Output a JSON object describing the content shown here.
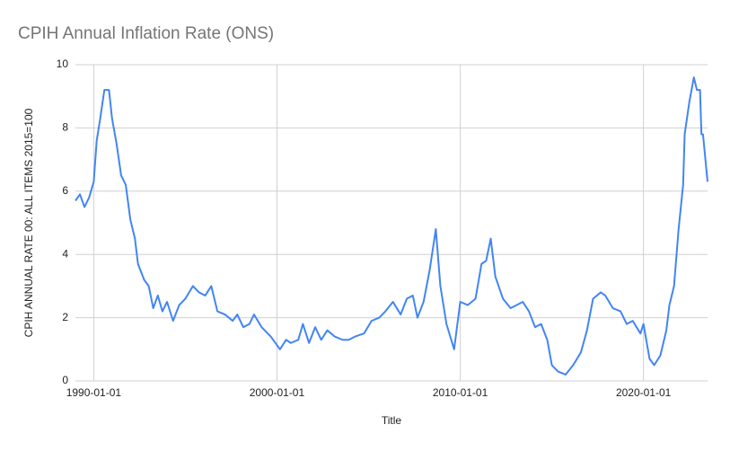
{
  "chart_data": {
    "type": "line",
    "title": "CPIH Annual Inflation Rate (ONS)",
    "xlabel": "Title",
    "ylabel": "CPIH ANNUAL RATE 00: ALL ITEMS 2015=100",
    "x": [
      "1989-01-01",
      "1989-04-01",
      "1989-07-01",
      "1989-10-01",
      "1990-01-01",
      "1990-03-01",
      "1990-05-01",
      "1990-08-01",
      "1990-11-01",
      "1991-01-01",
      "1991-04-01",
      "1991-07-01",
      "1991-10-01",
      "1992-01-01",
      "1992-04-01",
      "1992-06-01",
      "1992-10-01",
      "1993-01-01",
      "1993-04-01",
      "1993-07-01",
      "1993-10-01",
      "1994-01-01",
      "1994-05-01",
      "1994-09-01",
      "1995-01-01",
      "1995-06-01",
      "1995-10-01",
      "1996-02-01",
      "1996-06-01",
      "1996-10-01",
      "1997-03-01",
      "1997-08-01",
      "1997-11-01",
      "1998-03-01",
      "1998-07-01",
      "1998-10-01",
      "1999-03-01",
      "1999-09-01",
      "2000-03-01",
      "2000-07-01",
      "2000-10-01",
      "2001-03-01",
      "2001-06-01",
      "2001-10-01",
      "2002-02-01",
      "2002-06-01",
      "2002-10-01",
      "2003-03-01",
      "2003-08-01",
      "2003-12-01",
      "2004-04-01",
      "2004-10-01",
      "2005-03-01",
      "2005-08-01",
      "2005-12-01",
      "2006-05-01",
      "2006-10-01",
      "2007-02-01",
      "2007-06-01",
      "2007-09-01",
      "2008-01-01",
      "2008-05-01",
      "2008-09-01",
      "2008-12-01",
      "2009-04-01",
      "2009-09-01",
      "2010-01-01",
      "2010-06-01",
      "2010-11-01",
      "2011-03-01",
      "2011-06-01",
      "2011-09-01",
      "2011-12-01",
      "2012-05-01",
      "2012-10-01",
      "2013-02-01",
      "2013-06-01",
      "2013-10-01",
      "2014-02-01",
      "2014-06-01",
      "2014-10-01",
      "2015-01-01",
      "2015-05-01",
      "2015-10-01",
      "2016-03-01",
      "2016-08-01",
      "2016-12-01",
      "2017-04-01",
      "2017-09-01",
      "2017-12-01",
      "2018-05-01",
      "2018-10-01",
      "2019-02-01",
      "2019-06-01",
      "2019-11-01",
      "2020-01-01",
      "2020-05-01",
      "2020-08-01",
      "2020-12-01",
      "2021-04-01",
      "2021-06-01",
      "2021-09-01",
      "2021-12-01",
      "2022-03-01",
      "2022-04-01",
      "2022-07-01",
      "2022-10-01",
      "2022-12-01",
      "2023-02-01",
      "2023-03-01",
      "2023-04-01",
      "2023-07-01"
    ],
    "series": [
      {
        "name": "CPIH ANNUAL RATE 00: ALL ITEMS 2015=100",
        "color": "#4285f4",
        "values": [
          5.7,
          5.9,
          5.5,
          5.8,
          6.3,
          7.6,
          8.2,
          9.2,
          9.2,
          8.3,
          7.5,
          6.5,
          6.2,
          5.1,
          4.5,
          3.7,
          3.2,
          3.0,
          2.3,
          2.7,
          2.2,
          2.5,
          1.9,
          2.4,
          2.6,
          3.0,
          2.8,
          2.7,
          3.0,
          2.2,
          2.1,
          1.9,
          2.1,
          1.7,
          1.8,
          2.1,
          1.7,
          1.4,
          1.0,
          1.3,
          1.2,
          1.3,
          1.8,
          1.2,
          1.7,
          1.3,
          1.6,
          1.4,
          1.3,
          1.3,
          1.4,
          1.5,
          1.9,
          2.0,
          2.2,
          2.5,
          2.1,
          2.6,
          2.7,
          2.0,
          2.5,
          3.5,
          4.8,
          3.0,
          1.8,
          1.0,
          2.5,
          2.4,
          2.6,
          3.7,
          3.8,
          4.5,
          3.3,
          2.6,
          2.3,
          2.4,
          2.5,
          2.2,
          1.7,
          1.8,
          1.3,
          0.5,
          0.3,
          0.2,
          0.5,
          0.9,
          1.6,
          2.6,
          2.8,
          2.7,
          2.3,
          2.2,
          1.8,
          1.9,
          1.5,
          1.8,
          0.7,
          0.5,
          0.8,
          1.6,
          2.4,
          3.0,
          4.8,
          6.2,
          7.8,
          8.8,
          9.6,
          9.2,
          9.2,
          7.8,
          7.8,
          6.3
        ]
      }
    ],
    "xlim": [
      "1989-01-01",
      "2023-07-01"
    ],
    "xticks": [
      "1990-01-01",
      "2000-01-01",
      "2010-01-01",
      "2020-01-01"
    ],
    "ylim": [
      0,
      10
    ],
    "yticks": [
      0,
      2,
      4,
      6,
      8,
      10
    ],
    "grid": true
  }
}
